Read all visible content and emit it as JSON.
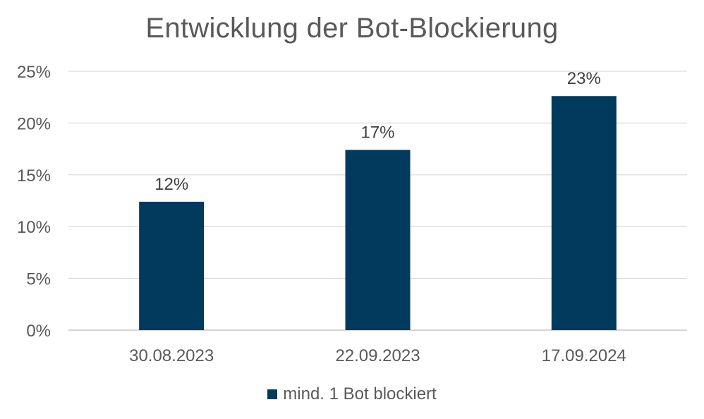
{
  "chart_data": {
    "type": "bar",
    "title": "Entwicklung der Bot-Blockierung",
    "categories": [
      "30.08.2023",
      "22.09.2023",
      "17.09.2024"
    ],
    "series": [
      {
        "name": "mind. 1 Bot blockiert",
        "values": [
          12.4,
          17.4,
          22.6
        ],
        "data_labels": [
          "12%",
          "17%",
          "23%"
        ],
        "color": "#003a5d"
      }
    ],
    "ylim": [
      0,
      25
    ],
    "yticks": [
      0,
      5,
      10,
      15,
      20,
      25
    ],
    "ytick_labels": [
      "0%",
      "5%",
      "10%",
      "15%",
      "20%",
      "25%"
    ],
    "grid": true,
    "legend_position": "bottom"
  }
}
